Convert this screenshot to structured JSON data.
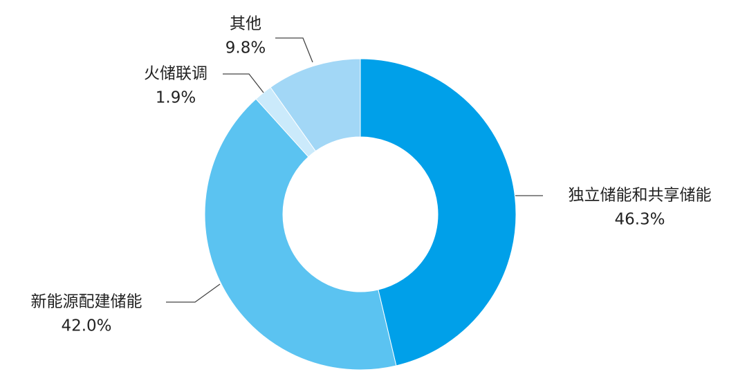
{
  "chart_data": {
    "type": "donut",
    "categories": [
      "独立储能和共享储能",
      "新能源配建储能",
      "火储联调",
      "其他"
    ],
    "values": [
      46.3,
      42.0,
      1.9,
      9.8
    ],
    "value_labels": [
      "46.3%",
      "42.0%",
      "1.9%",
      "9.8%"
    ],
    "colors": [
      "#00a0e9",
      "#5bc3f1",
      "#cbeafb",
      "#a2d7f6"
    ]
  }
}
